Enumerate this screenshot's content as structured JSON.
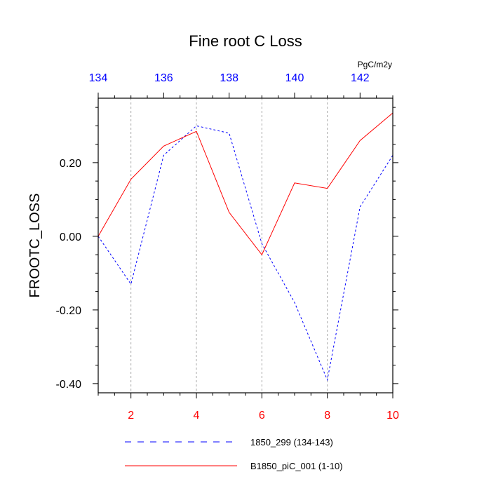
{
  "chart_data": {
    "type": "line",
    "title": "Fine root C Loss",
    "units": "PgC/m2y",
    "ylabel": "FROOTC_LOSS",
    "ylim": [
      -0.425,
      0.375
    ],
    "yticks": [
      -0.4,
      -0.2,
      0.0,
      0.2
    ],
    "ytick_labels": [
      "-0.40",
      "-0.20",
      "0.00",
      "0.20"
    ],
    "x_bottom": {
      "range": [
        1,
        10
      ],
      "ticks": [
        2,
        4,
        6,
        8,
        10
      ],
      "tick_labels": [
        "2",
        "4",
        "6",
        "8",
        "10"
      ]
    },
    "x_top": {
      "range": [
        134,
        143
      ],
      "ticks": [
        134,
        136,
        138,
        140,
        142
      ],
      "tick_labels": [
        "134",
        "136",
        "138",
        "140",
        "142"
      ]
    },
    "vertical_grid": [
      2,
      4,
      6,
      8
    ],
    "series": [
      {
        "name": "1850_299 (134-143)",
        "color": "#0000ff",
        "dash": "dashed",
        "x": [
          1,
          2,
          3,
          4,
          5,
          6,
          7,
          8,
          9,
          10
        ],
        "values": [
          0.0,
          -0.13,
          0.22,
          0.3,
          0.28,
          -0.02,
          -0.18,
          -0.39,
          0.08,
          0.22
        ]
      },
      {
        "name": "B1850_piC_001 (1-10)",
        "color": "#ff0000",
        "dash": "solid",
        "x": [
          1,
          2,
          3,
          4,
          5,
          6,
          7,
          8,
          9,
          10
        ],
        "values": [
          0.0,
          0.155,
          0.245,
          0.285,
          0.065,
          -0.05,
          0.145,
          0.13,
          0.26,
          0.335
        ]
      }
    ],
    "legend_position": "bottom"
  }
}
